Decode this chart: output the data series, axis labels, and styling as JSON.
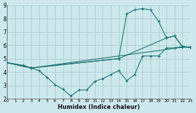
{
  "xlabel": "Humidex (Indice chaleur)",
  "bg_color": "#cce8ec",
  "grid_color": "#aaccd0",
  "line_color": "#1a7070",
  "xlim": [
    0,
    23
  ],
  "ylim": [
    2,
    9
  ],
  "xticks": [
    0,
    1,
    2,
    3,
    4,
    5,
    6,
    7,
    8,
    9,
    10,
    11,
    12,
    13,
    14,
    15,
    16,
    17,
    18,
    19,
    20,
    21,
    22,
    23
  ],
  "yticks": [
    2,
    3,
    4,
    5,
    6,
    7,
    8,
    9
  ],
  "series": [
    {
      "x": [
        0,
        2,
        3,
        4,
        5,
        6,
        7,
        8,
        9,
        10,
        11,
        12,
        13,
        14,
        15,
        16,
        17,
        18,
        19,
        20,
        21,
        22,
        23
      ],
      "y": [
        4.7,
        4.5,
        4.3,
        4.1,
        3.6,
        3.05,
        2.7,
        2.2,
        2.65,
        2.65,
        3.3,
        3.5,
        3.8,
        4.1,
        3.35,
        3.8,
        5.2,
        5.2,
        5.2,
        5.8,
        5.8,
        5.9,
        5.85
      ]
    },
    {
      "x": [
        0,
        3,
        14,
        15,
        16,
        17,
        18,
        19,
        20,
        21,
        22,
        23
      ],
      "y": [
        4.7,
        4.3,
        5.0,
        8.35,
        8.65,
        8.75,
        8.65,
        7.8,
        6.55,
        6.7,
        5.9,
        5.85
      ]
    },
    {
      "x": [
        0,
        3,
        14,
        20,
        21,
        22,
        23
      ],
      "y": [
        4.7,
        4.3,
        5.0,
        6.55,
        6.7,
        5.9,
        5.85
      ]
    },
    {
      "x": [
        0,
        3,
        22,
        23
      ],
      "y": [
        4.7,
        4.3,
        5.85,
        5.85
      ]
    }
  ]
}
